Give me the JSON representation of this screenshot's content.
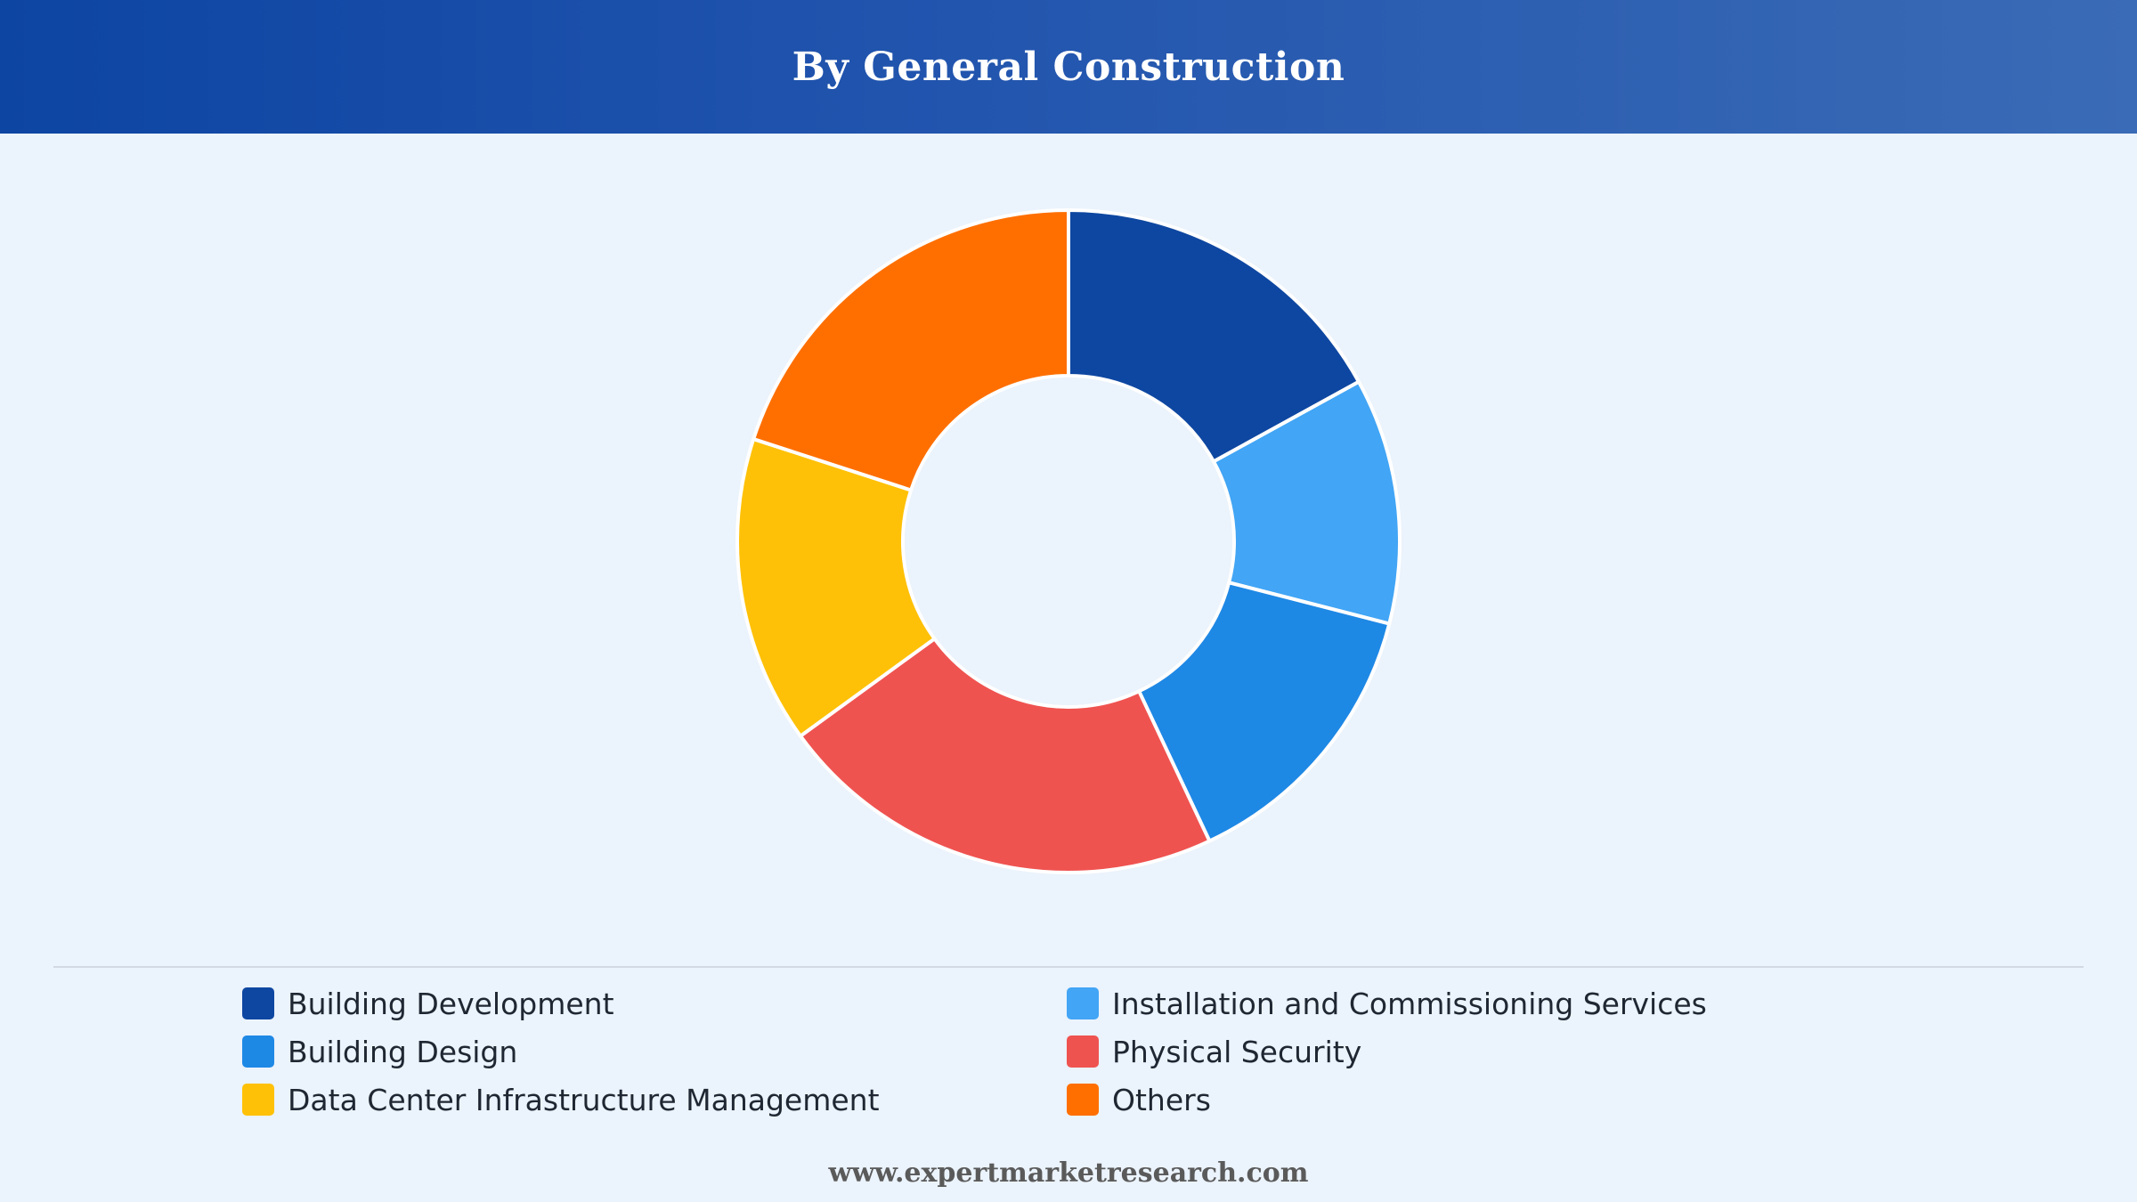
{
  "header": {
    "title": "By General Construction"
  },
  "chart_data": {
    "type": "pie",
    "title": "By General Construction",
    "donut": true,
    "categories": [
      "Building Development",
      "Installation and Commissioning Services",
      "Building Design",
      "Physical Security",
      "Data Center Infrastructure Management",
      "Others"
    ],
    "values": [
      17,
      12,
      14,
      22,
      15,
      20
    ],
    "colors": [
      "#0e47a1",
      "#42a5f5",
      "#1e88e5",
      "#ef5350",
      "#ffc107",
      "#ff6f00"
    ],
    "legend_position": "bottom"
  },
  "legend": {
    "items": [
      {
        "label": "Building Development",
        "color": "#0e47a1"
      },
      {
        "label": "Installation and Commissioning Services",
        "color": "#42a5f5"
      },
      {
        "label": "Building Design",
        "color": "#1e88e5"
      },
      {
        "label": "Physical Security",
        "color": "#ef5350"
      },
      {
        "label": "Data Center Infrastructure Management",
        "color": "#ffc107"
      },
      {
        "label": "Others",
        "color": "#ff6f00"
      }
    ]
  },
  "footer": {
    "text": "www.expertmarketresearch.com"
  }
}
